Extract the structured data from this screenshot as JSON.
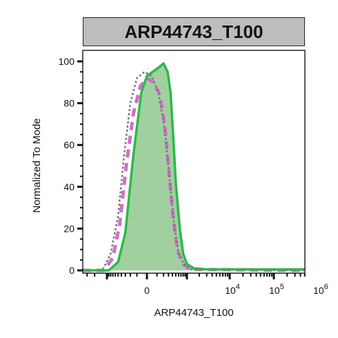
{
  "chart_data": {
    "type": "area",
    "title": "ARP44743_T100",
    "xlabel": "ARP44743_T100",
    "ylabel": "Normalized To Mode",
    "ylim": [
      0,
      100
    ],
    "y_ticks": [
      "0",
      "20",
      "40",
      "60",
      "80",
      "100"
    ],
    "x_tick_labels": [
      {
        "label": "0",
        "value": 0
      },
      {
        "label": "4",
        "base": "10",
        "value": 10000
      },
      {
        "label": "5",
        "base": "10",
        "value": 100000
      },
      {
        "label": "6",
        "base": "10",
        "value": 1000000
      }
    ],
    "x_scale": "biexponential",
    "series": [
      {
        "style": "filled-green",
        "color": "#2eb84c",
        "fill": "#8fc88f",
        "x": [
          -20000,
          -900,
          -500,
          -300,
          -150,
          -50,
          0,
          50,
          120,
          200,
          280,
          350,
          420,
          500,
          650,
          800,
          1000,
          1500,
          3000,
          10000,
          1000000
        ],
        "y": [
          0,
          0,
          4,
          18,
          55,
          85,
          93,
          95,
          97,
          99,
          95,
          85,
          65,
          42,
          20,
          8,
          3,
          1,
          0.5,
          0.5,
          0.5
        ]
      },
      {
        "style": "dashed-pink",
        "color": "#d070c8",
        "x": [
          -20000,
          -1200,
          -700,
          -450,
          -280,
          -150,
          -60,
          0,
          60,
          140,
          220,
          300,
          400,
          550,
          800,
          1200,
          1000000
        ],
        "y": [
          0,
          0,
          6,
          22,
          50,
          75,
          88,
          92,
          90,
          84,
          70,
          50,
          28,
          10,
          3,
          0.5,
          0
        ]
      },
      {
        "style": "dotted-gray",
        "color": "#777777",
        "x": [
          -20000,
          -1300,
          -800,
          -500,
          -330,
          -200,
          -100,
          -20,
          40,
          120,
          220,
          320,
          450,
          600,
          900,
          1300,
          1000000
        ],
        "y": [
          0,
          0,
          8,
          26,
          55,
          80,
          92,
          95,
          93,
          85,
          68,
          45,
          22,
          8,
          2,
          0.5,
          0
        ]
      }
    ],
    "grid": false,
    "legend": "none"
  }
}
